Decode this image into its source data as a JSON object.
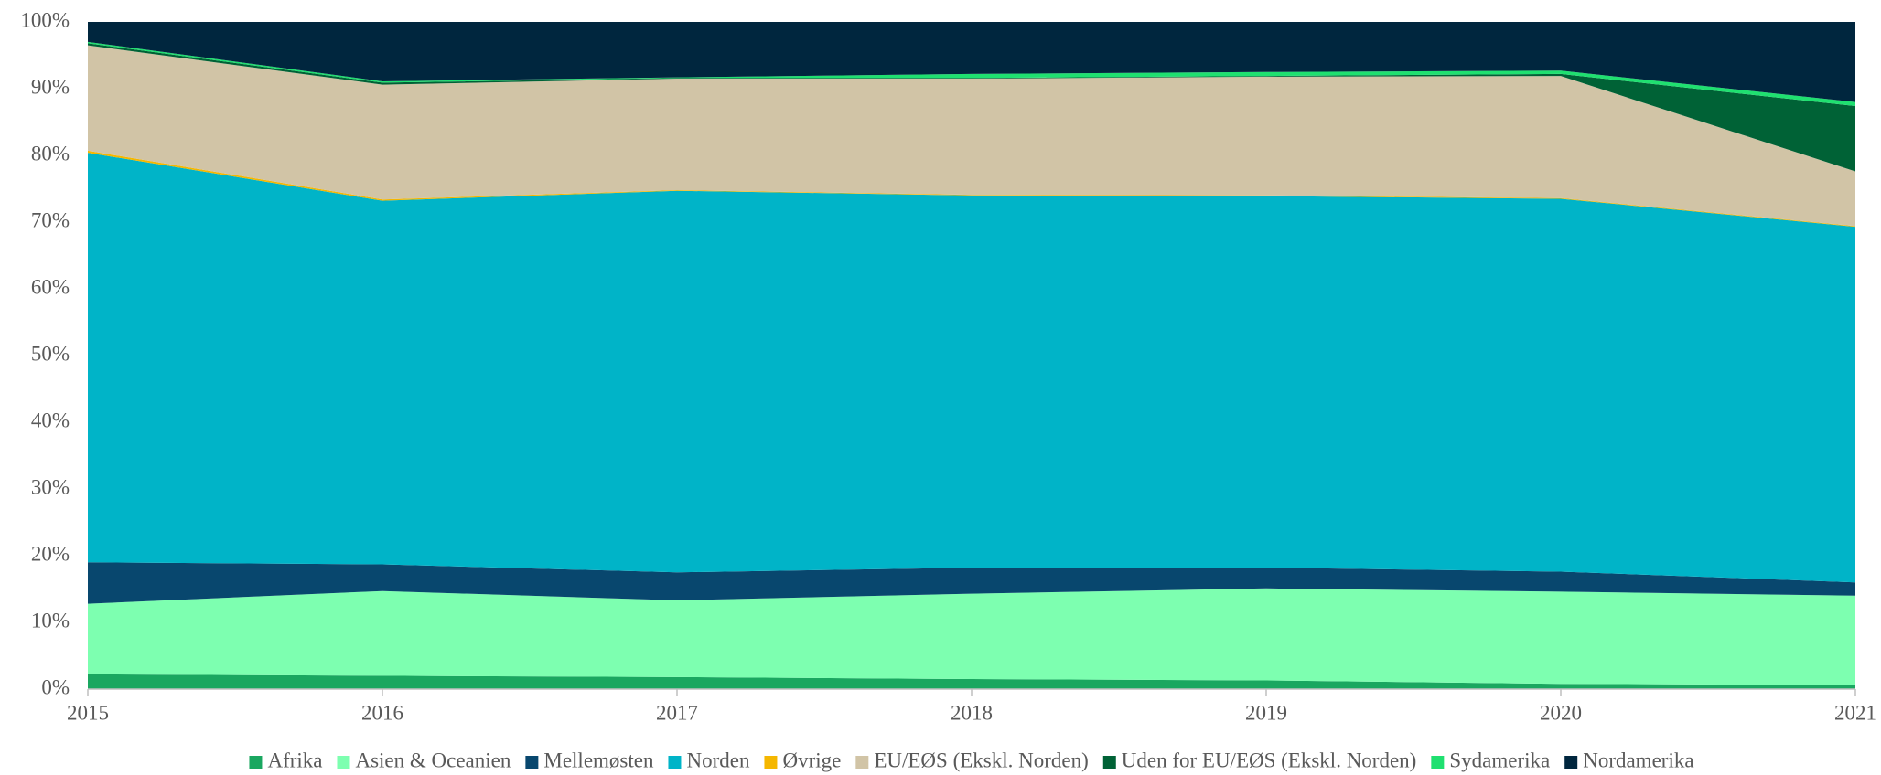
{
  "chart_data": {
    "type": "stacked_area",
    "x": [
      2015,
      2016,
      2017,
      2018,
      2019,
      2020,
      2021
    ],
    "xlim": [
      2015,
      2021
    ],
    "xticks": [
      2015,
      2016,
      2017,
      2018,
      2019,
      2020,
      2021
    ],
    "ylim": [
      0,
      100
    ],
    "yticks": [
      {
        "value": 0,
        "label": "0%"
      },
      {
        "value": 10,
        "label": "10%"
      },
      {
        "value": 20,
        "label": "20%"
      },
      {
        "value": 30,
        "label": "30%"
      },
      {
        "value": 40,
        "label": "40%"
      },
      {
        "value": 50,
        "label": "50%"
      },
      {
        "value": 60,
        "label": "60%"
      },
      {
        "value": 70,
        "label": "70%"
      },
      {
        "value": 80,
        "label": "80%"
      },
      {
        "value": 90,
        "label": "90%"
      },
      {
        "value": 100,
        "label": "100%"
      }
    ],
    "legend": "bottom",
    "series": [
      {
        "name": "Afrika",
        "color": "#1aa760",
        "values": [
          2.2,
          2.0,
          1.8,
          1.5,
          1.3,
          0.8,
          0.6
        ]
      },
      {
        "name": "Asien & Oceanien",
        "color": "#7dffb0",
        "values": [
          10.6,
          12.7,
          11.5,
          12.8,
          13.8,
          13.8,
          13.4
        ]
      },
      {
        "name": "Mellemøsten",
        "color": "#08476e",
        "values": [
          6.2,
          4.0,
          4.2,
          3.9,
          3.1,
          3.0,
          2.0
        ]
      },
      {
        "name": "Norden",
        "color": "#00b4c8",
        "values": [
          61.4,
          54.5,
          57.2,
          55.8,
          55.7,
          55.9,
          53.3
        ]
      },
      {
        "name": "Øvrige",
        "color": "#f5b700",
        "values": [
          0.3,
          0.2,
          0.1,
          0.1,
          0.1,
          0.1,
          0.1
        ]
      },
      {
        "name": "EU/EØS (Ekskl. Norden)",
        "color": "#d1c4a6",
        "values": [
          15.8,
          17.2,
          16.7,
          17.4,
          17.8,
          18.3,
          8.2
        ]
      },
      {
        "name": "Uden for EU/EØS (Ekskl. Norden)",
        "color": "#006236",
        "values": [
          0.3,
          0.3,
          0.1,
          0.1,
          0.1,
          0.3,
          9.8
        ]
      },
      {
        "name": "Sydamerika",
        "color": "#1fe070",
        "values": [
          0.2,
          0.2,
          0.1,
          0.6,
          0.6,
          0.5,
          0.6
        ]
      },
      {
        "name": "Nordamerika",
        "color": "#00263e",
        "values": [
          3.0,
          8.9,
          8.3,
          7.8,
          7.5,
          7.3,
          12.0
        ]
      }
    ]
  }
}
